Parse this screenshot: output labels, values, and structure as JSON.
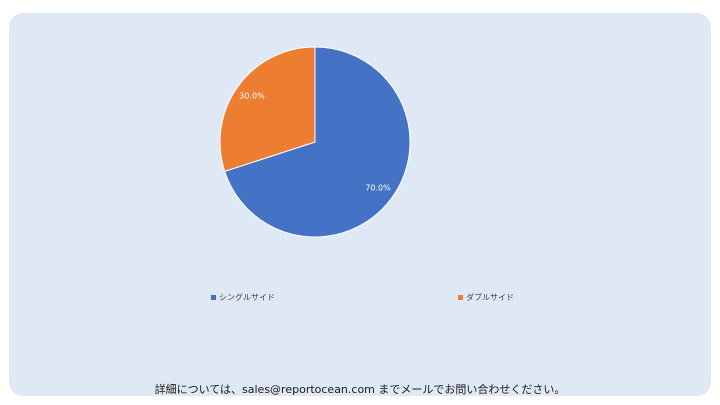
{
  "chart_data": {
    "type": "pie",
    "categories": [
      "シングルサイド",
      "ダブルサイド"
    ],
    "values": [
      70.0,
      30.0
    ],
    "data_labels": [
      "70.0%",
      "30.0%"
    ],
    "colors": [
      "#4472c4",
      "#ed7d31"
    ],
    "legend_position": "bottom"
  },
  "footer": {
    "text": "詳細については、sales@reportocean.com までメールでお問い合わせください。"
  },
  "colors": {
    "card_background": "#dfe9f5"
  }
}
